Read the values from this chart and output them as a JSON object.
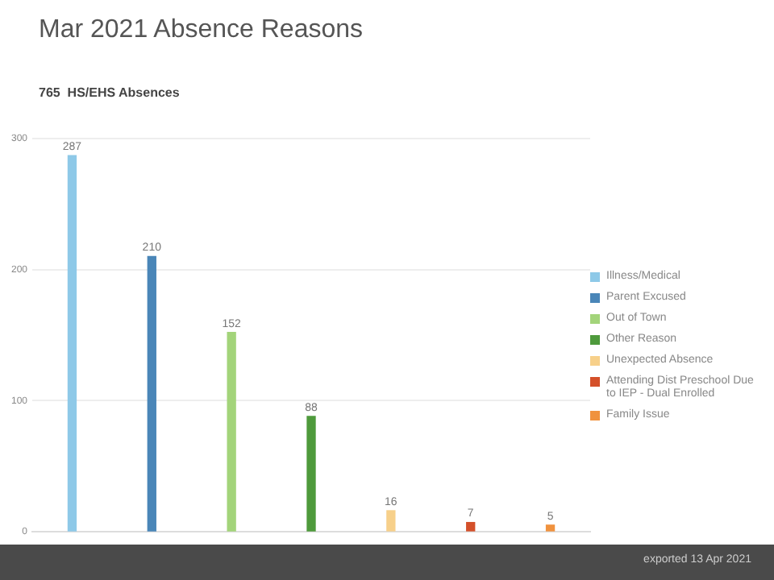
{
  "chart_data": {
    "type": "bar",
    "title": "Mar 2021 Absence Reasons",
    "subtitle": "765  HS/EHS Absences",
    "categories": [
      null,
      null,
      null,
      null,
      null,
      null,
      null
    ],
    "series": [
      {
        "name": "Illness/Medical",
        "color": "#8ec9e8",
        "values": [
          287,
          null,
          null,
          null,
          null,
          null,
          null
        ]
      },
      {
        "name": "Parent Excused",
        "color": "#4a86b8",
        "values": [
          null,
          210,
          null,
          null,
          null,
          null,
          null
        ]
      },
      {
        "name": "Out of Town",
        "color": "#a3d47a",
        "values": [
          null,
          null,
          152,
          null,
          null,
          null,
          null
        ]
      },
      {
        "name": "Other Reason",
        "color": "#4e9a3c",
        "values": [
          null,
          null,
          null,
          88,
          null,
          null,
          null
        ]
      },
      {
        "name": "Unexpected Absence",
        "color": "#f7d08a",
        "values": [
          null,
          null,
          null,
          null,
          16,
          null,
          null
        ]
      },
      {
        "name": "Attending Dist Preschool Due to IEP - Dual Enrolled",
        "color": "#d4502a",
        "values": [
          null,
          null,
          null,
          null,
          null,
          7,
          null
        ]
      },
      {
        "name": "Family Issue",
        "color": "#f0923e",
        "values": [
          null,
          null,
          null,
          null,
          null,
          null,
          5
        ]
      }
    ],
    "ylim": [
      0,
      300
    ],
    "yticks": [
      0,
      100,
      200,
      300
    ],
    "grid": "y",
    "legend": "right",
    "data_labels": true,
    "annotations": [
      "exported 13 Apr 2021"
    ]
  }
}
